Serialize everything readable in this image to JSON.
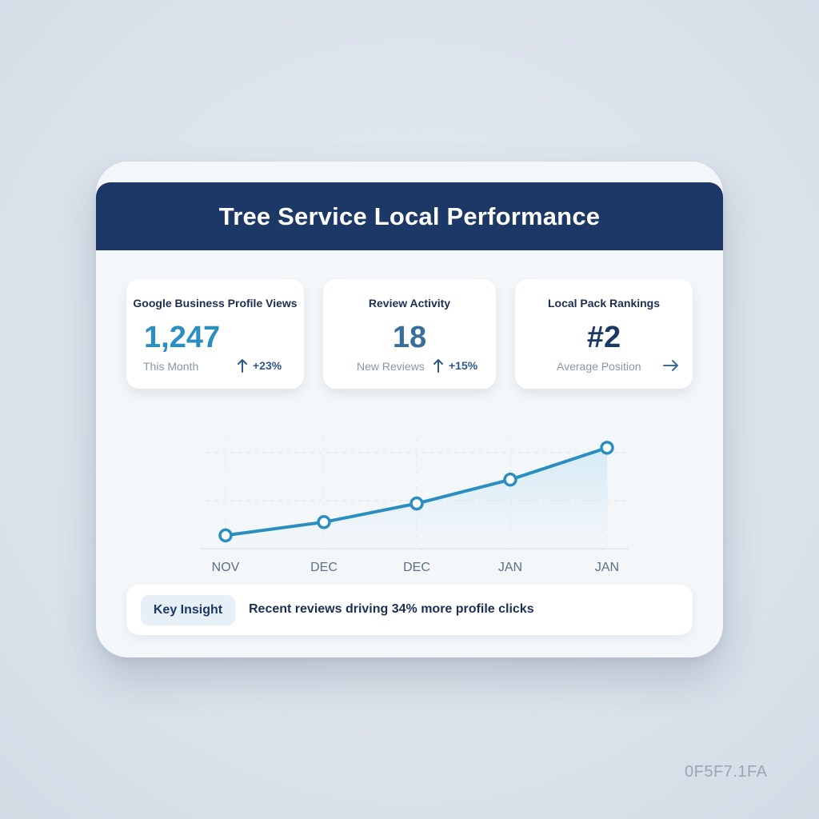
{
  "dashboard": {
    "title": "Tree Service Local Performance"
  },
  "metrics": [
    {
      "label": "Google Business Profile Views",
      "value": "1,247",
      "sub": "This Month",
      "change": "+23%",
      "trend_icon": "arrow-up-icon"
    },
    {
      "label": "Review Activity",
      "value": "18",
      "sub": "New Reviews",
      "change": "+15%",
      "trend_icon": "arrow-up-icon"
    },
    {
      "label": "Local Pack Rankings",
      "value": "#2",
      "sub": "Average Position",
      "change": "",
      "trend_icon": "arrow-right-icon"
    }
  ],
  "chart_data": {
    "type": "line",
    "categories": [
      "NOV",
      "DEC",
      "DEC",
      "JAN",
      "JAN"
    ],
    "series": [
      {
        "values": [
          10,
          20,
          34,
          52,
          76
        ]
      }
    ],
    "ylim": [
      0,
      100
    ],
    "grid": true,
    "line_color": "#2a8fc0"
  },
  "insight": {
    "tag": "Key Insight",
    "text": "Recent reviews driving 34% more profile clicks"
  },
  "watermark": "0F5F7.1FA",
  "colors": {
    "header": "#1c3866",
    "accent": "#2a8fc0",
    "background": "#dbe3ec"
  }
}
